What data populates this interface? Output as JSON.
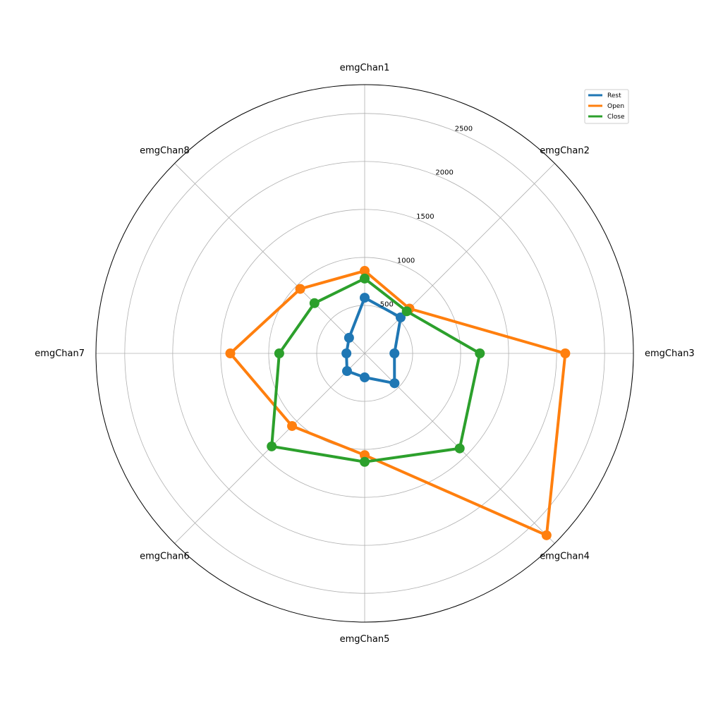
{
  "chart_data": {
    "type": "radar",
    "axes": [
      "emgChan1",
      "emgChan2",
      "emgChan3",
      "emgChan4",
      "emgChan5",
      "emgChan6",
      "emgChan7",
      "emgChan8"
    ],
    "radial_ticks": [
      500,
      1000,
      1500,
      2000,
      2500
    ],
    "rlim": [
      0,
      2800
    ],
    "grid": true,
    "legend_position": "top-right",
    "series": [
      {
        "name": "Rest",
        "color": "#1f77b4",
        "values": [
          580,
          530,
          310,
          440,
          250,
          260,
          190,
          230
        ]
      },
      {
        "name": "Open",
        "color": "#ff7f0e",
        "values": [
          860,
          660,
          2090,
          2680,
          1060,
          1070,
          1400,
          950
        ]
      },
      {
        "name": "Close",
        "color": "#2ca02c",
        "values": [
          780,
          620,
          1200,
          1400,
          1130,
          1370,
          890,
          740
        ]
      }
    ]
  }
}
